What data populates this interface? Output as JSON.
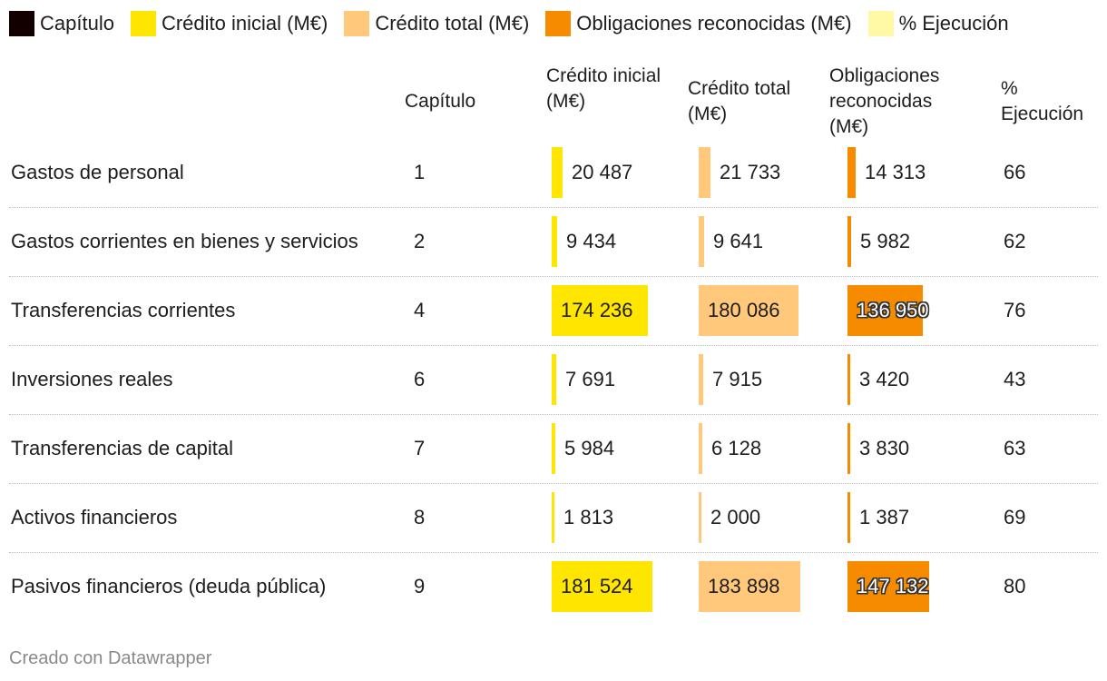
{
  "legend": [
    {
      "label": "Capítulo",
      "color": "#120000"
    },
    {
      "label": "Crédito inicial (M€)",
      "color": "#ffe600"
    },
    {
      "label": "Crédito total (M€)",
      "color": "#ffc87a"
    },
    {
      "label": "Obligaciones reconocidas (M€)",
      "color": "#f68b00"
    },
    {
      "label": "% Ejecución",
      "color": "#fff8a5"
    }
  ],
  "headers": {
    "capitulo": "Capítulo",
    "credito_inicial": "Crédito inicial (M€)",
    "credito_total": "Crédito total (M€)",
    "obligaciones": "Obligaciones reconocidas (M€)",
    "ejecucion": "% Ejecución"
  },
  "footer": "Creado con Datawrapper",
  "chart_data": {
    "type": "table",
    "title": "",
    "columns": [
      "",
      "Capítulo",
      "Crédito inicial (M€)",
      "Crédito total (M€)",
      "Obligaciones reconocidas (M€)",
      "% Ejecución"
    ],
    "max_value": 183898,
    "rows": [
      {
        "name": "Gastos de personal",
        "capitulo": 1,
        "credito_inicial": 20487,
        "credito_inicial_label": "20 487",
        "credito_total": 21733,
        "credito_total_label": "21 733",
        "obligaciones": 14313,
        "obligaciones_label": "14 313",
        "ejecucion": 66
      },
      {
        "name": "Gastos corrientes en bienes y servicios",
        "capitulo": 2,
        "credito_inicial": 9434,
        "credito_inicial_label": "9 434",
        "credito_total": 9641,
        "credito_total_label": "9 641",
        "obligaciones": 5982,
        "obligaciones_label": "5 982",
        "ejecucion": 62
      },
      {
        "name": "Transferencias corrientes",
        "capitulo": 4,
        "credito_inicial": 174236,
        "credito_inicial_label": "174 236",
        "credito_total": 180086,
        "credito_total_label": "180 086",
        "obligaciones": 136950,
        "obligaciones_label": "136 950",
        "ejecucion": 76
      },
      {
        "name": "Inversiones reales",
        "capitulo": 6,
        "credito_inicial": 7691,
        "credito_inicial_label": "7 691",
        "credito_total": 7915,
        "credito_total_label": "7 915",
        "obligaciones": 3420,
        "obligaciones_label": "3 420",
        "ejecucion": 43
      },
      {
        "name": "Transferencias de capital",
        "capitulo": 7,
        "credito_inicial": 5984,
        "credito_inicial_label": "5 984",
        "credito_total": 6128,
        "credito_total_label": "6 128",
        "obligaciones": 3830,
        "obligaciones_label": "3 830",
        "ejecucion": 63
      },
      {
        "name": "Activos financieros",
        "capitulo": 8,
        "credito_inicial": 1813,
        "credito_inicial_label": "1 813",
        "credito_total": 2000,
        "credito_total_label": "2 000",
        "obligaciones": 1387,
        "obligaciones_label": "1 387",
        "ejecucion": 69
      },
      {
        "name": "Pasivos financieros (deuda pública)",
        "capitulo": 9,
        "credito_inicial": 181524,
        "credito_inicial_label": "181 524",
        "credito_total": 183898,
        "credito_total_label": "183 898",
        "obligaciones": 147132,
        "obligaciones_label": "147 132",
        "ejecucion": 80
      }
    ]
  }
}
